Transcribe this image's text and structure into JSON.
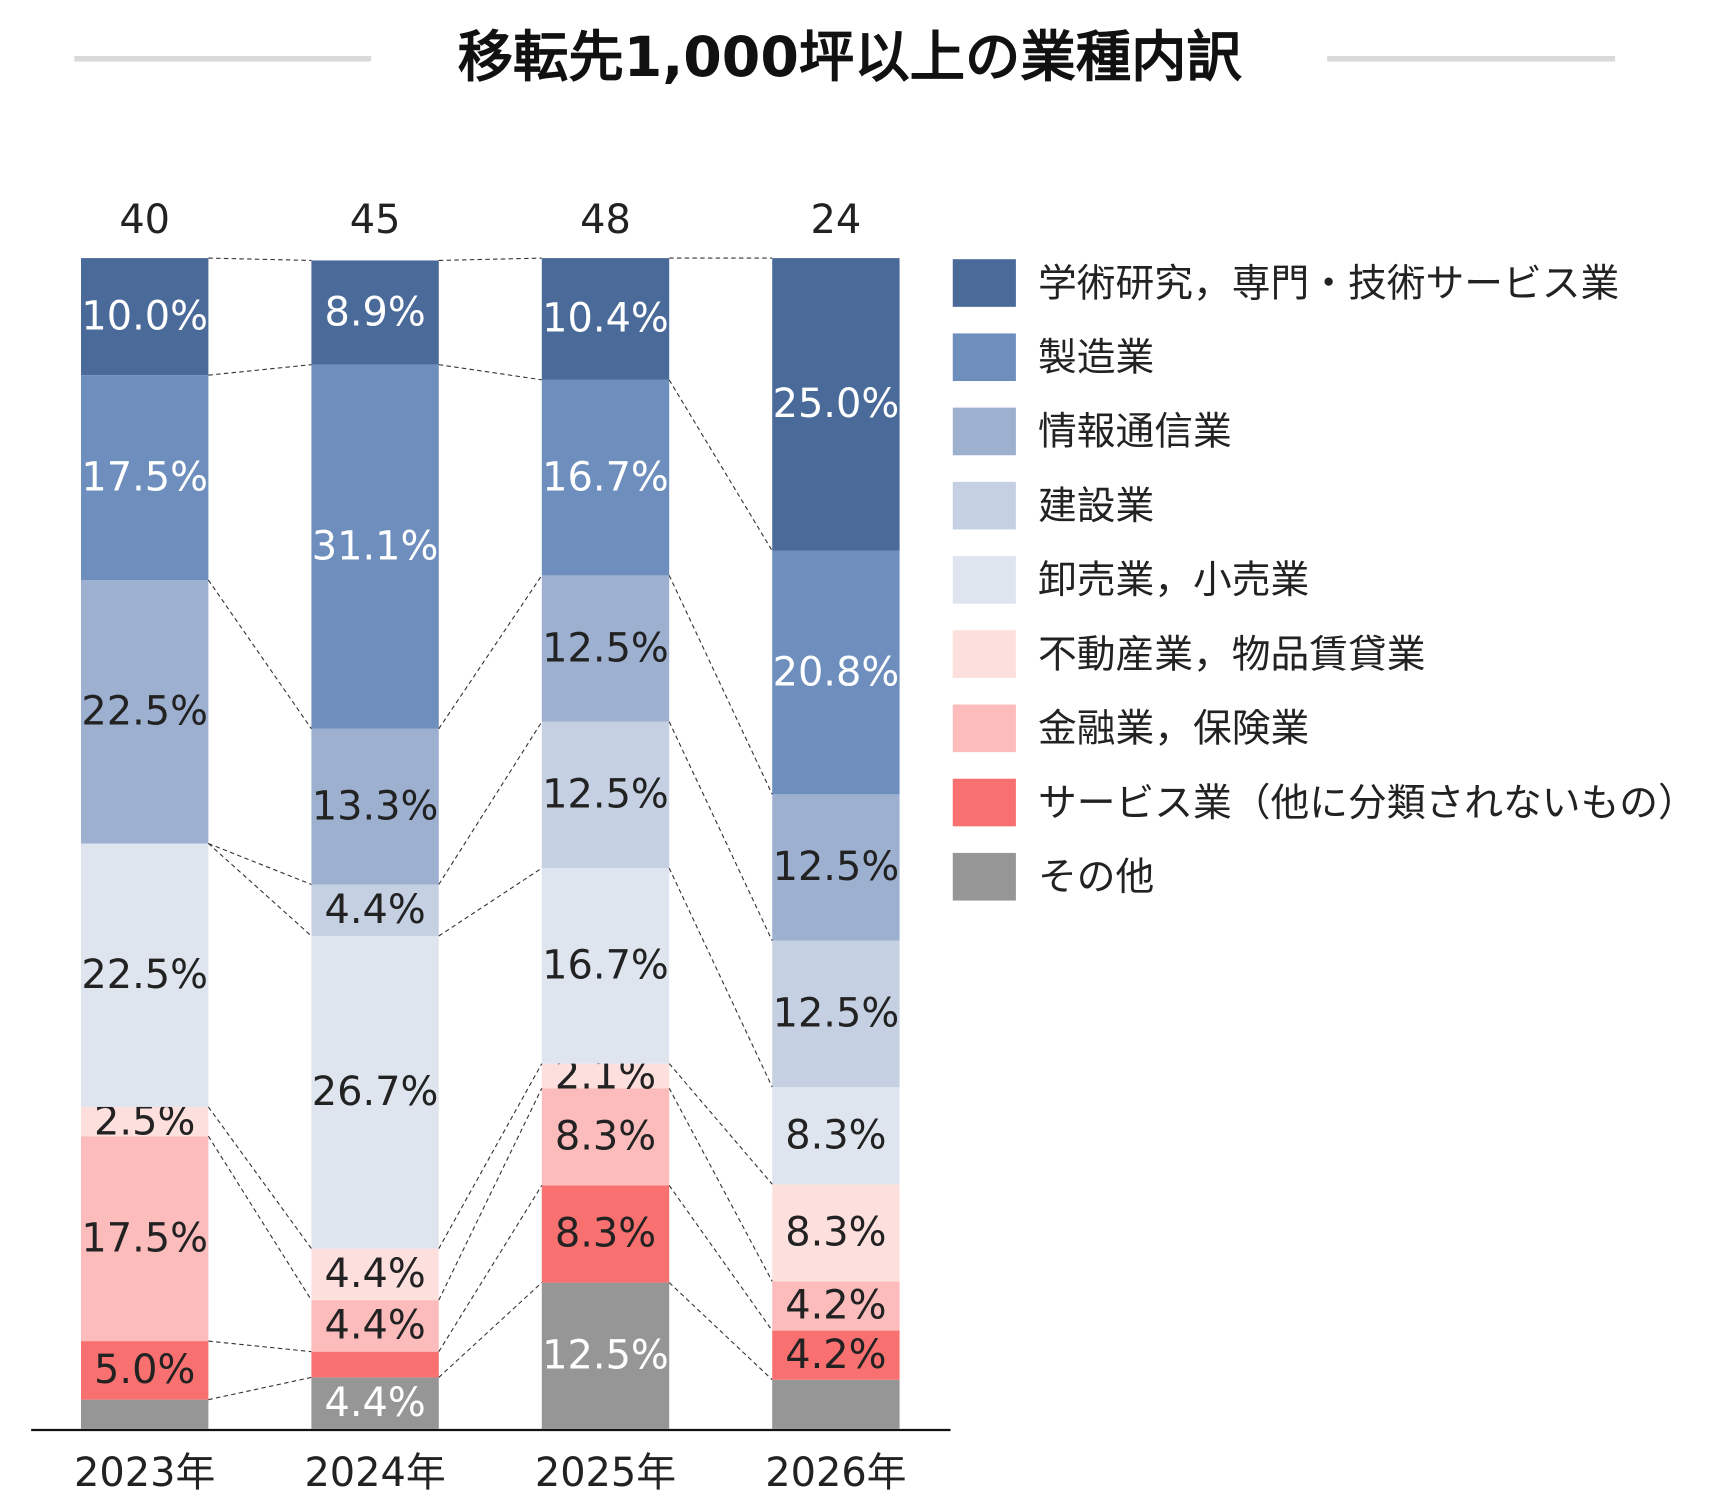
{
  "chart_data": {
    "type": "stacked-bar-100",
    "title": "移転先1,000坪以上の業種内訳",
    "categories": [
      "2023年",
      "2024年",
      "2025年",
      "2026年"
    ],
    "totals": [
      40,
      45,
      48,
      24
    ],
    "ylim": [
      0,
      100
    ],
    "series": [
      {
        "name": "学術研究，専門・技術サービス業",
        "color": "#4a6a9a",
        "label_color": "#ffffff",
        "values": [
          10.0,
          8.9,
          10.4,
          25.0
        ],
        "value_labels": [
          "10.0%",
          "8.9%",
          "10.4%",
          "25.0%"
        ]
      },
      {
        "name": "製造業",
        "color": "#6e8fbd",
        "label_color": "#ffffff",
        "values": [
          17.5,
          31.1,
          16.7,
          20.8
        ],
        "value_labels": [
          "17.5%",
          "31.1%",
          "16.7%",
          "20.8%"
        ]
      },
      {
        "name": "情報通信業",
        "color": "#9eb0d0",
        "label_color": "#222222",
        "values": [
          22.5,
          13.3,
          12.5,
          12.5
        ],
        "value_labels": [
          "22.5%",
          "13.3%",
          "12.5%",
          "12.5%"
        ]
      },
      {
        "name": "建設業",
        "color": "#c6d0e3",
        "label_color": "#222222",
        "values": [
          0,
          4.4,
          12.5,
          12.5
        ],
        "value_labels": [
          null,
          "4.4%",
          "12.5%",
          "12.5%"
        ]
      },
      {
        "name": "卸売業，小売業",
        "color": "#dfe5ef",
        "label_color": "#222222",
        "values": [
          22.5,
          26.7,
          16.7,
          8.3
        ],
        "value_labels": [
          "22.5%",
          "26.7%",
          "16.7%",
          "8.3%"
        ]
      },
      {
        "name": "不動産業，物品賃貸業",
        "color": "#fde0de",
        "label_color": "#222222",
        "values": [
          2.5,
          4.4,
          2.1,
          8.3
        ],
        "value_labels": [
          "2.5%",
          "4.4%",
          "2.1%",
          "8.3%"
        ]
      },
      {
        "name": "金融業，保険業",
        "color": "#fcbcbc",
        "label_color": "#222222",
        "values": [
          17.5,
          4.4,
          8.3,
          4.2
        ],
        "value_labels": [
          "17.5%",
          "4.4%",
          "8.3%",
          "4.2%"
        ]
      },
      {
        "name": "サービス業（他に分類されないもの）",
        "color": "#f97070",
        "label_color": "#222222",
        "values": [
          5.0,
          2.2,
          8.3,
          4.2
        ],
        "value_labels": [
          "5.0%",
          null,
          "8.3%",
          "4.2%"
        ]
      },
      {
        "name": "その他",
        "color": "#969696",
        "label_color": "#ffffff",
        "values": [
          2.5,
          4.4,
          12.5,
          4.2
        ],
        "value_labels": [
          null,
          "4.4%",
          "12.5%",
          null
        ]
      }
    ]
  }
}
